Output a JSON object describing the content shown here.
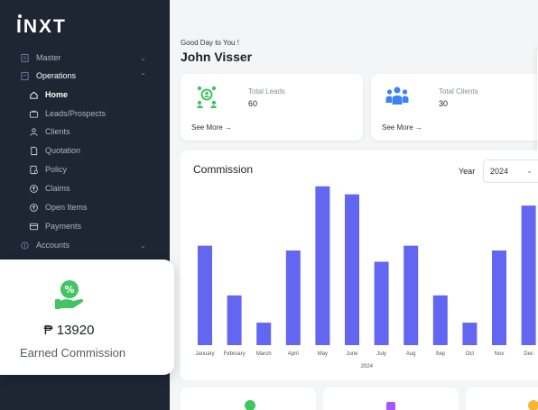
{
  "sidebar": {
    "logo": "INXT",
    "groups": [
      {
        "label": "Master",
        "icon": "master-icon",
        "expanded": false
      },
      {
        "label": "Operations",
        "icon": "operations-icon",
        "expanded": true
      },
      {
        "label": "Accounts",
        "icon": "accounts-icon",
        "expanded": false
      }
    ],
    "items": [
      {
        "label": "Home",
        "icon": "home-icon",
        "active": true
      },
      {
        "label": "Leads/Prospects",
        "icon": "folder-icon"
      },
      {
        "label": "Clients",
        "icon": "clients-icon"
      },
      {
        "label": "Quotation",
        "icon": "document-icon"
      },
      {
        "label": "Policy",
        "icon": "policy-icon"
      },
      {
        "label": "Claims",
        "icon": "claims-icon"
      },
      {
        "label": "Open Items",
        "icon": "open-items-icon"
      },
      {
        "label": "Payments",
        "icon": "card-icon"
      }
    ]
  },
  "earned": {
    "amount": "₱ 13920",
    "label": "Earned Commission",
    "icon": "hand-commission-icon"
  },
  "header": {
    "greeting": "Good Day to You !",
    "user": "John Visser"
  },
  "stats": [
    {
      "label": "Total Leads",
      "value": "60",
      "see_more": "See More →",
      "icon": "leads-icon"
    },
    {
      "label": "Total Clients",
      "value": "30",
      "see_more": "See More →",
      "icon": "clients-group-icon"
    }
  ],
  "chart_controls": {
    "year_label": "Year",
    "year_value": "2024"
  },
  "chart_data": {
    "type": "bar",
    "title": "Commission",
    "xlabel": "2024",
    "ylabel": "",
    "categories": [
      "January",
      "February",
      "March",
      "April",
      "May",
      "June",
      "July",
      "Aug",
      "Sep",
      "Oct",
      "Nov",
      "Dec"
    ],
    "values": [
      62,
      31,
      14,
      59,
      99,
      94,
      52,
      62,
      31,
      14,
      59,
      87
    ],
    "ylim": [
      0,
      100
    ],
    "color": "#6366f1"
  }
}
